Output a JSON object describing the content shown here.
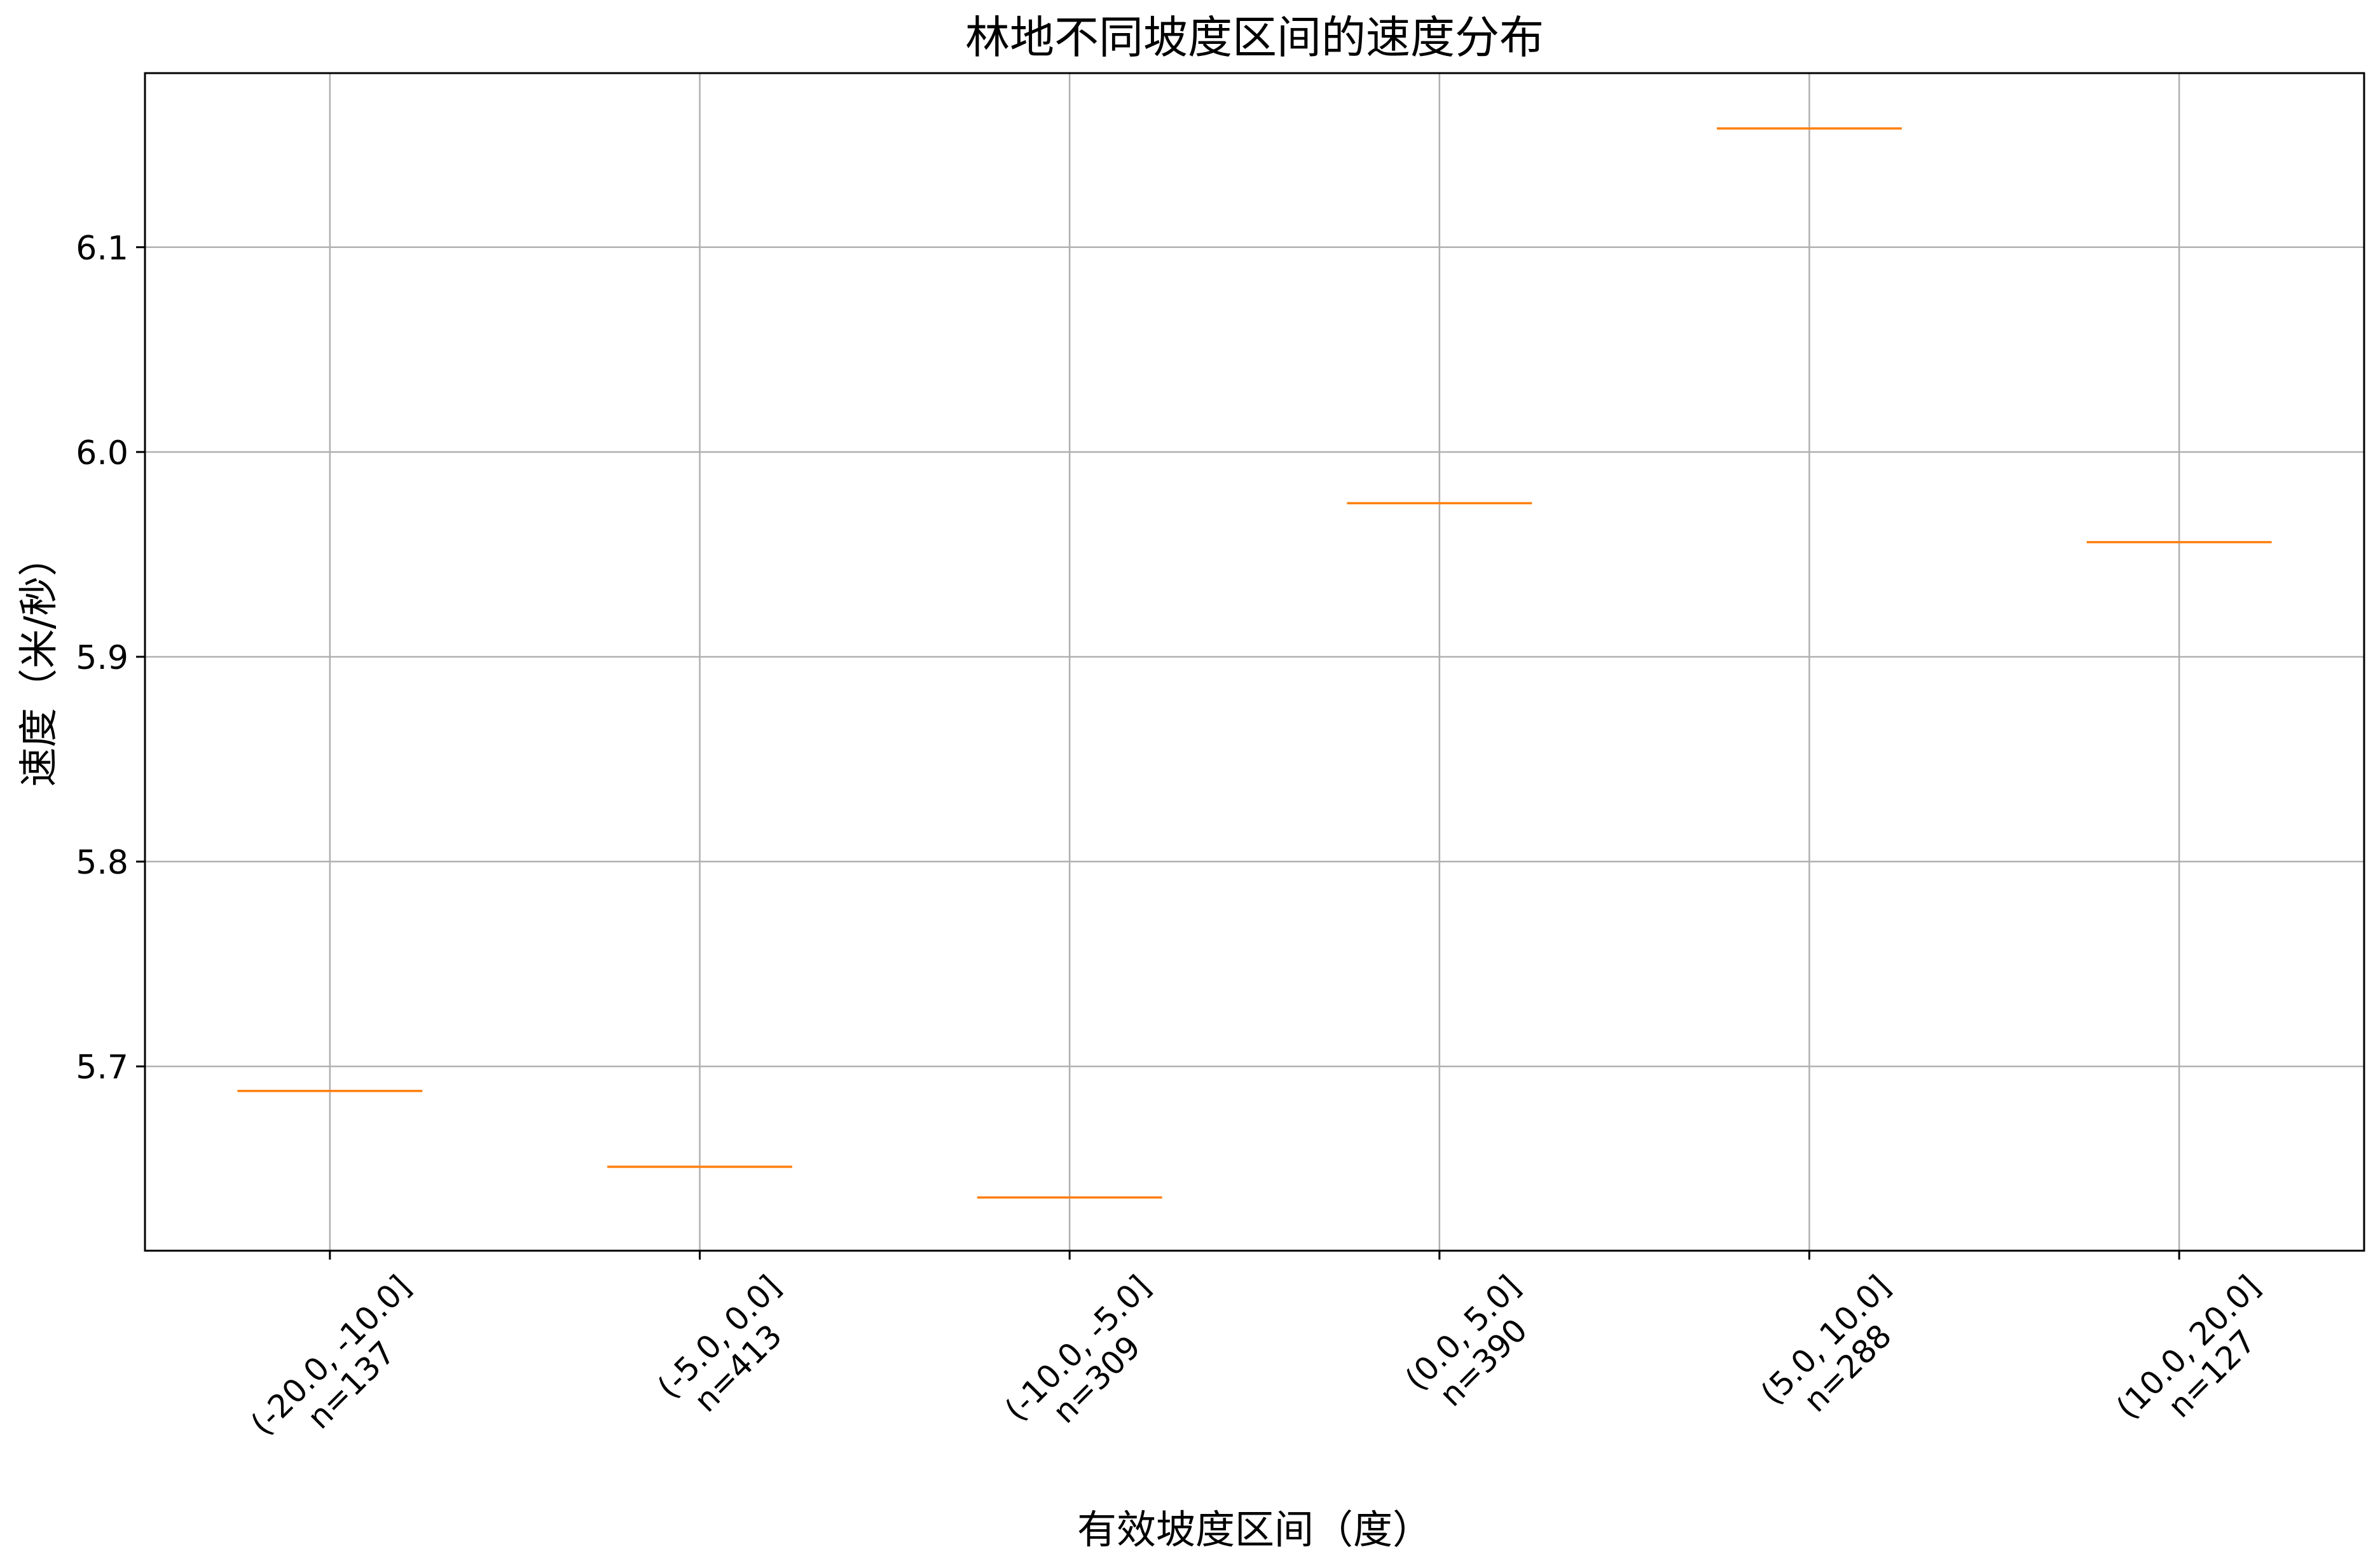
{
  "chart_data": {
    "type": "box",
    "title": "林地不同坡度区间的速度分布",
    "xlabel": "有效坡度区间（度）",
    "ylabel": "速度（米/秒）",
    "categories": [
      {
        "label": "(-20.0, -10.0]",
        "count": "n=137"
      },
      {
        "label": "(-5.0, 0.0]",
        "count": "n=413"
      },
      {
        "label": "(-10.0, -5.0]",
        "count": "n=309"
      },
      {
        "label": "(0.0, 5.0]",
        "count": "n=390"
      },
      {
        "label": "(5.0, 10.0]",
        "count": "n=288"
      },
      {
        "label": "(10.0, 20.0]",
        "count": "n=127"
      }
    ],
    "medians": [
      5.688,
      5.651,
      5.636,
      5.975,
      6.158,
      5.956
    ],
    "ylim": [
      5.61,
      6.185
    ],
    "yticks": [
      "5.7",
      "5.8",
      "5.9",
      "6.0",
      "6.1"
    ],
    "ytick_values": [
      5.7,
      5.8,
      5.9,
      6.0,
      6.1
    ],
    "grid": true,
    "legend": "none",
    "colors": {
      "median": "#ff7f0e",
      "grid": "#b0b0b0",
      "axes": "#000000"
    }
  }
}
